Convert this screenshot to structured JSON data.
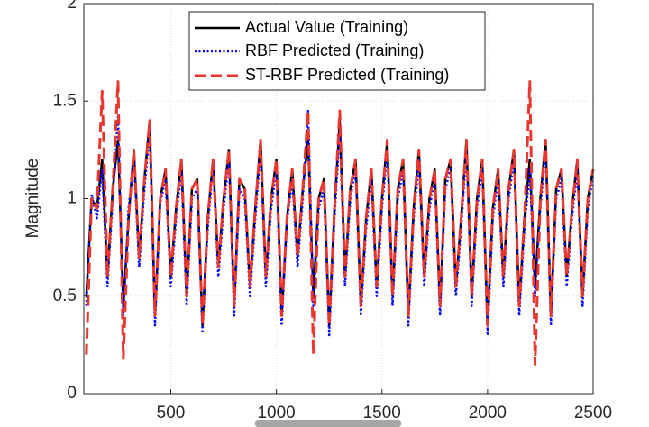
{
  "chart_data": {
    "type": "line",
    "y_label": "Magnitude",
    "x": [
      100,
      125,
      150,
      175,
      200,
      225,
      250,
      275,
      300,
      325,
      350,
      375,
      400,
      425,
      450,
      475,
      500,
      525,
      550,
      575,
      600,
      625,
      650,
      675,
      700,
      725,
      750,
      775,
      800,
      825,
      850,
      875,
      900,
      925,
      950,
      975,
      1000,
      1025,
      1050,
      1075,
      1100,
      1125,
      1150,
      1175,
      1200,
      1225,
      1250,
      1275,
      1300,
      1325,
      1350,
      1375,
      1400,
      1425,
      1450,
      1475,
      1500,
      1525,
      1550,
      1575,
      1600,
      1625,
      1650,
      1675,
      1700,
      1725,
      1750,
      1775,
      1800,
      1825,
      1850,
      1875,
      1900,
      1925,
      1950,
      1975,
      2000,
      2025,
      2050,
      2075,
      2100,
      2125,
      2150,
      2175,
      2200,
      2225,
      2250,
      2275,
      2300,
      2325,
      2350,
      2375,
      2400,
      2425,
      2450,
      2475,
      2500
    ],
    "series": [
      {
        "name": "Actual Value (Training)",
        "color": "#000000",
        "style": "solid",
        "values": [
          0.5,
          1.0,
          0.95,
          1.2,
          0.6,
          1.05,
          1.3,
          0.45,
          0.9,
          1.25,
          0.7,
          1.1,
          1.4,
          0.4,
          1.0,
          1.15,
          0.6,
          0.95,
          1.2,
          0.5,
          1.05,
          1.1,
          0.35,
          0.9,
          1.2,
          0.65,
          1.0,
          1.25,
          0.45,
          1.1,
          1.05,
          0.55,
          0.95,
          1.3,
          0.6,
          1.0,
          1.2,
          0.4,
          0.9,
          1.15,
          0.7,
          1.05,
          1.3,
          0.5,
          1.0,
          1.1,
          0.35,
          0.95,
          1.4,
          0.6,
          1.05,
          1.2,
          0.45,
          0.9,
          1.15,
          0.55,
          1.0,
          1.3,
          0.5,
          1.05,
          1.2,
          0.4,
          0.95,
          1.25,
          0.6,
          1.0,
          1.15,
          0.45,
          1.1,
          1.2,
          0.55,
          0.9,
          1.3,
          0.5,
          1.0,
          1.2,
          0.35,
          0.95,
          1.15,
          0.6,
          1.05,
          1.25,
          0.45,
          0.9,
          1.2,
          0.55,
          1.0,
          1.3,
          0.4,
          1.05,
          1.15,
          0.6,
          0.95,
          1.2,
          0.5,
          1.0,
          1.15
        ]
      },
      {
        "name": "RBF Predicted (Training)",
        "color": "#0000ff",
        "style": "dotted",
        "values": [
          0.45,
          1.02,
          0.9,
          1.15,
          0.55,
          1.0,
          1.42,
          0.4,
          0.95,
          1.2,
          0.65,
          1.05,
          1.35,
          0.35,
          0.98,
          1.1,
          0.55,
          0.9,
          1.15,
          0.45,
          1.0,
          1.05,
          0.32,
          0.85,
          1.18,
          0.6,
          0.95,
          1.2,
          0.4,
          1.05,
          1.0,
          0.5,
          0.9,
          1.25,
          0.55,
          0.95,
          1.15,
          0.35,
          0.88,
          1.1,
          0.65,
          1.0,
          1.45,
          0.45,
          0.95,
          1.05,
          0.3,
          0.9,
          1.35,
          0.55,
          1.0,
          1.15,
          0.4,
          0.85,
          1.1,
          0.5,
          0.95,
          1.25,
          0.45,
          1.0,
          1.15,
          0.35,
          0.9,
          1.2,
          0.55,
          0.95,
          1.1,
          0.4,
          1.05,
          1.15,
          0.5,
          0.85,
          1.25,
          0.45,
          0.95,
          1.15,
          0.3,
          0.9,
          1.1,
          0.55,
          1.0,
          1.2,
          0.4,
          0.85,
          1.15,
          0.5,
          0.95,
          1.25,
          0.35,
          1.0,
          1.1,
          0.55,
          0.9,
          1.15,
          0.45,
          0.95,
          1.12
        ]
      },
      {
        "name": "ST-RBF Predicted (Training)",
        "color": "#e8372f",
        "style": "dashed",
        "values": [
          0.2,
          1.0,
          0.95,
          1.55,
          0.6,
          1.05,
          1.6,
          0.18,
          0.9,
          1.25,
          0.7,
          1.1,
          1.4,
          0.4,
          1.0,
          1.15,
          0.6,
          0.95,
          1.2,
          0.5,
          1.05,
          1.1,
          0.35,
          0.9,
          1.2,
          0.65,
          1.0,
          1.25,
          0.45,
          1.1,
          1.05,
          0.55,
          0.95,
          1.3,
          0.6,
          1.0,
          1.2,
          0.4,
          0.9,
          1.15,
          0.7,
          1.05,
          1.45,
          0.2,
          1.0,
          1.1,
          0.35,
          0.95,
          1.45,
          0.6,
          1.05,
          1.2,
          0.45,
          0.9,
          1.15,
          0.55,
          1.0,
          1.3,
          0.5,
          1.05,
          1.2,
          0.4,
          0.95,
          1.25,
          0.6,
          1.0,
          1.15,
          0.45,
          1.1,
          1.2,
          0.55,
          0.9,
          1.3,
          0.5,
          1.0,
          1.2,
          0.35,
          0.95,
          1.15,
          0.6,
          1.05,
          1.25,
          0.45,
          0.9,
          1.6,
          0.15,
          1.0,
          1.3,
          0.4,
          1.05,
          1.15,
          0.6,
          0.95,
          1.2,
          0.5,
          1.0,
          1.15
        ]
      }
    ],
    "xlim": [
      88,
      2500
    ],
    "ylim": [
      0,
      2
    ],
    "xticks": [
      500,
      1000,
      1500,
      2000,
      2500
    ],
    "yticks": [
      0,
      0.5,
      1,
      1.5,
      2
    ],
    "grid": true,
    "legend": "top"
  }
}
